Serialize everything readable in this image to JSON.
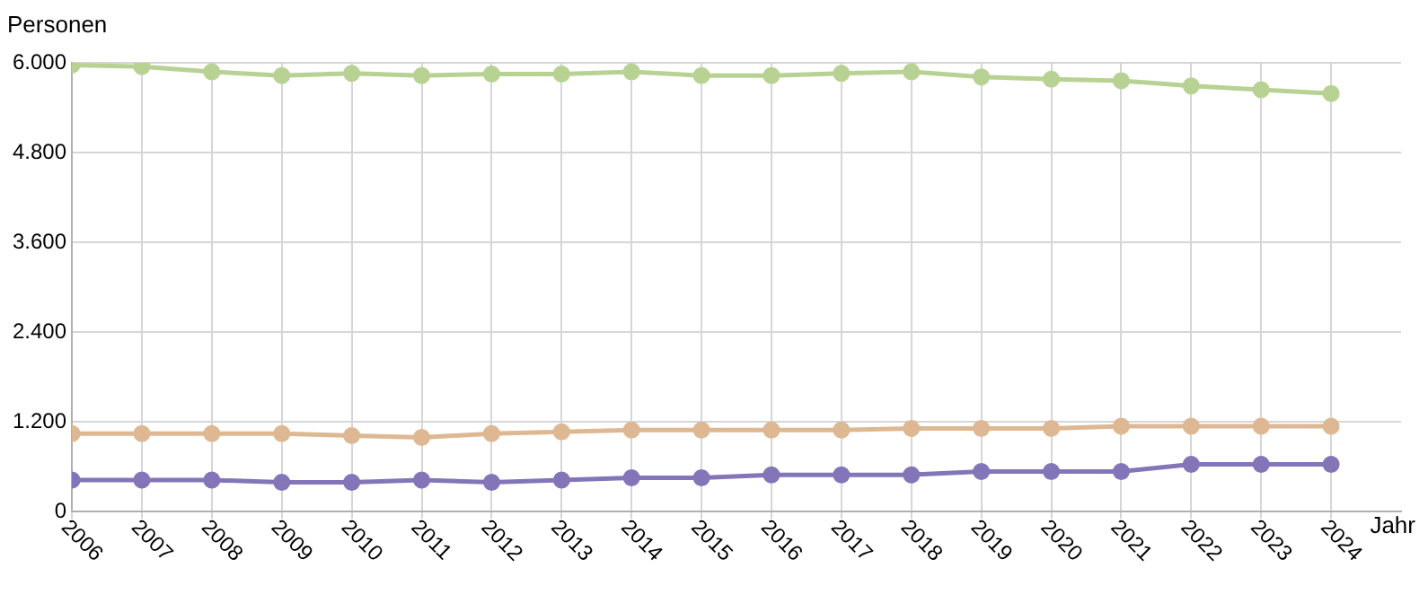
{
  "chart_data": {
    "type": "line",
    "ylabel": "Personen",
    "xlabel": "Jahr",
    "x": [
      2006,
      2007,
      2008,
      2009,
      2010,
      2011,
      2012,
      2013,
      2014,
      2015,
      2016,
      2017,
      2018,
      2019,
      2020,
      2021,
      2022,
      2023,
      2024
    ],
    "series": [
      {
        "color": "#b7d293",
        "values": [
          5970,
          5950,
          5880,
          5830,
          5860,
          5830,
          5850,
          5850,
          5880,
          5830,
          5830,
          5860,
          5880,
          5810,
          5780,
          5760,
          5690,
          5640,
          5590
        ]
      },
      {
        "color": "#ddb892",
        "values": [
          1040,
          1040,
          1040,
          1040,
          1015,
          990,
          1040,
          1065,
          1090,
          1090,
          1090,
          1090,
          1110,
          1110,
          1110,
          1140,
          1140,
          1140,
          1140
        ]
      },
      {
        "color": "#8375b8",
        "values": [
          420,
          420,
          420,
          390,
          390,
          420,
          390,
          420,
          450,
          450,
          490,
          490,
          490,
          535,
          535,
          535,
          630,
          630,
          630
        ]
      }
    ],
    "xlim": [
      2006,
      2025
    ],
    "xticks": [
      2006,
      2007,
      2008,
      2009,
      2010,
      2011,
      2012,
      2013,
      2014,
      2015,
      2016,
      2017,
      2018,
      2019,
      2020,
      2021,
      2022,
      2023,
      2024
    ],
    "ylim": [
      0,
      6000
    ],
    "yticks": [
      {
        "value": 0,
        "label": "0"
      },
      {
        "value": 1200,
        "label": "1.200"
      },
      {
        "value": 2400,
        "label": "2.400"
      },
      {
        "value": 3600,
        "label": "3.600"
      },
      {
        "value": 4800,
        "label": "4.800"
      },
      {
        "value": 6000,
        "label": "6.000"
      }
    ],
    "grid": true,
    "legend": false,
    "marker": "circle",
    "line_style": "solid"
  }
}
